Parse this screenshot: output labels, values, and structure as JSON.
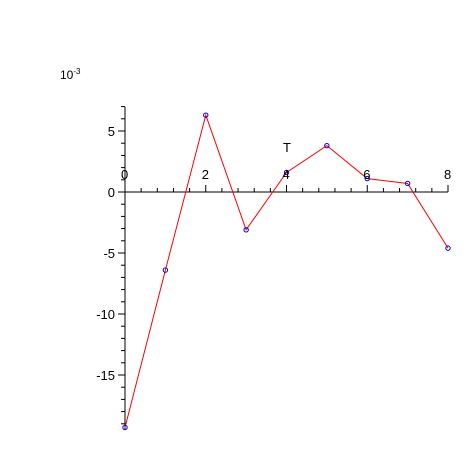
{
  "chart_data": {
    "type": "line",
    "title": "",
    "xlabel": "T",
    "ylabel": "",
    "y_scale_note": {
      "base": "10",
      "exponent": "-3"
    },
    "xlim": [
      0,
      8
    ],
    "ylim": [
      -19.5,
      7
    ],
    "x_ticks": [
      0,
      2,
      4,
      6,
      8
    ],
    "x_tick_labels": [
      "0",
      "2",
      "4",
      "6",
      "8"
    ],
    "y_ticks": [
      5,
      0,
      -5,
      -10,
      -15
    ],
    "y_tick_labels": [
      "5",
      "0",
      "-5",
      "-10",
      "-15"
    ],
    "grid": false,
    "legend": "none",
    "series": [
      {
        "x": [
          0,
          1,
          2,
          3,
          4,
          5,
          6,
          7,
          8
        ],
        "y": [
          -19.3,
          -6.4,
          6.3,
          -3.1,
          1.6,
          3.8,
          1.1,
          0.7,
          -4.6
        ]
      }
    ],
    "colors": {
      "line": "#ff0000",
      "marker": "#0000cc",
      "axis": "#000000"
    }
  }
}
